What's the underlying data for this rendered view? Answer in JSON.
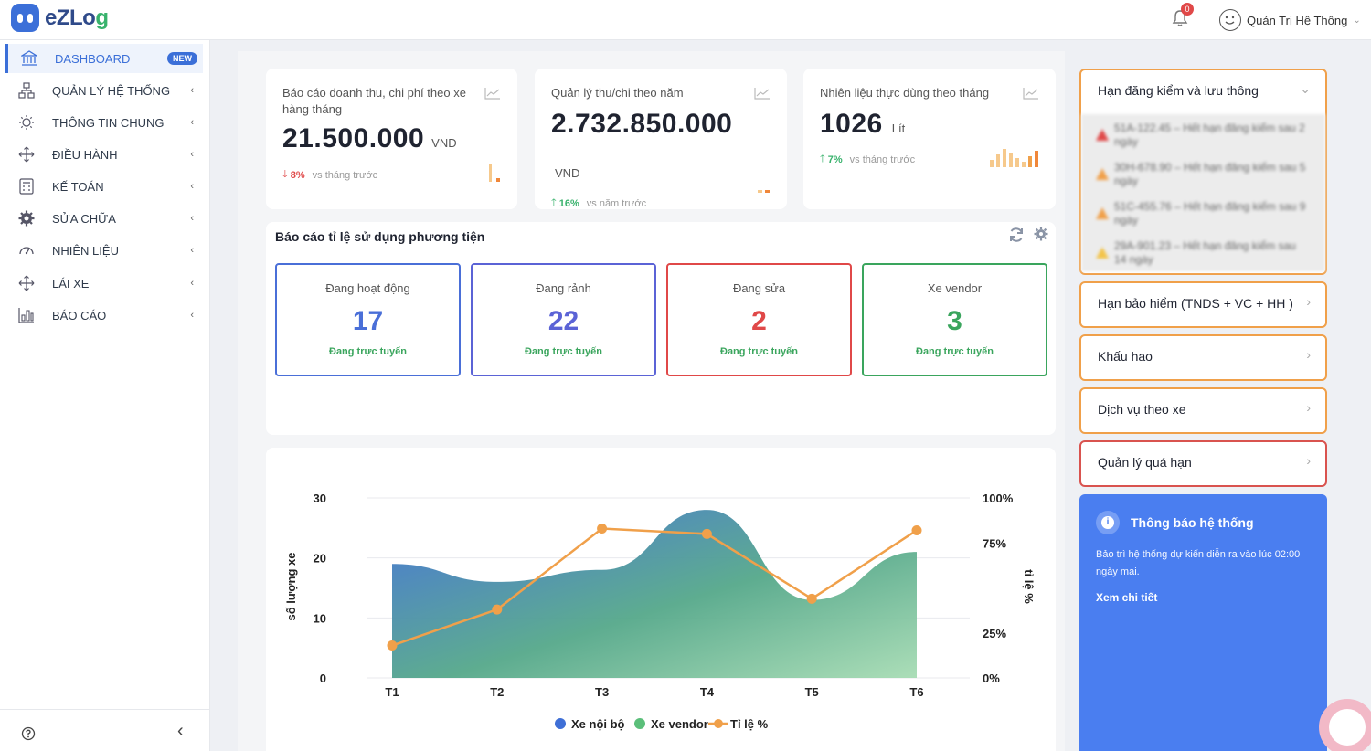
{
  "app": {
    "logo": {
      "part1": "eZ",
      "part2": "Lo",
      "part3": "g"
    }
  },
  "header": {
    "notification_count": "0",
    "user_name": "Quản Trị Hệ Thống"
  },
  "sidebar": {
    "items": [
      {
        "label": "DASHBOARD",
        "badge": "NEW",
        "icon": "bank-icon"
      },
      {
        "label": "QUẢN LÝ HỆ THỐNG",
        "icon": "sitemap-icon"
      },
      {
        "label": "THÔNG TIN CHUNG",
        "icon": "sun-icon"
      },
      {
        "label": "ĐIỀU HÀNH",
        "icon": "arrows-icon"
      },
      {
        "label": "KẾ TOÁN",
        "icon": "calculator-icon"
      },
      {
        "label": "SỬA CHỮA",
        "icon": "cog-icon"
      },
      {
        "label": "NHIÊN LIỆU",
        "icon": "gauge-icon"
      },
      {
        "label": "LÁI XE",
        "icon": "steering-icon"
      },
      {
        "label": "BÁO CÁO",
        "icon": "bar-chart-icon"
      }
    ]
  },
  "kpis": [
    {
      "title": "Báo cáo doanh thu, chi phí theo xe hàng tháng",
      "value": "21.500.000",
      "unit": "VND",
      "direction": "down",
      "pct": "8%",
      "note": "vs tháng trước"
    },
    {
      "title": "Quản lý thu/chi theo năm",
      "value": "2.732.850.000",
      "unit": "VND",
      "direction": "up",
      "pct": "16%",
      "note": "vs năm trước"
    },
    {
      "title": "Nhiên liệu thực dùng theo tháng",
      "value": "1026",
      "unit": "Lít",
      "direction": "up",
      "pct": "7%",
      "note": "vs tháng trước"
    }
  ],
  "ratio": {
    "title": "Báo cáo tỉ lệ sử dụng phương tiện",
    "boxes": [
      {
        "label": "Đang hoạt động",
        "value": "17",
        "sub": "Đang trực tuyến",
        "color": "#4a6fd8",
        "sub_color": "#3aa55d"
      },
      {
        "label": "Đang rảnh",
        "value": "22",
        "sub": "Đang trực tuyến",
        "color": "#5b63d6",
        "sub_color": "#3aa55d"
      },
      {
        "label": "Đang sửa",
        "value": "2",
        "sub": "Đang trực tuyến",
        "color": "#e04848",
        "sub_color": "#3aa55d"
      },
      {
        "label": "Xe vendor",
        "value": "3",
        "sub": "Đang trực tuyến",
        "color": "#3aa55d",
        "sub_color": "#3aa55d"
      }
    ]
  },
  "chart_data": {
    "type": "area",
    "categories": [
      "T1",
      "T2",
      "T3",
      "T4",
      "T5",
      "T6"
    ],
    "ylabel": "số lượng xe",
    "y2label": "tỉ lệ %",
    "ylim": [
      0,
      30
    ],
    "y2lim": [
      0,
      100
    ],
    "yticks": [
      "0",
      "10",
      "20",
      "30"
    ],
    "y2ticks": [
      "0%",
      "25%",
      "75%",
      "100%"
    ],
    "series": [
      {
        "name": "Xe nội bộ",
        "values": [
          19,
          16,
          18,
          28,
          13,
          21
        ],
        "color": "#3f6fd6"
      },
      {
        "name": "Xe vendor",
        "values": [
          19,
          16,
          18,
          28,
          13,
          21
        ],
        "color": "#5bbf7a"
      },
      {
        "name": "Tỉ lệ %",
        "axis": "right",
        "values": [
          18,
          38,
          83,
          80,
          44,
          82
        ],
        "color": "#f0a04a"
      }
    ],
    "legend": "bottom"
  },
  "right_panel": {
    "sections": [
      {
        "label": "Hạn đăng kiểm và lưu thông",
        "expanded": true,
        "color": "#f0a04a"
      },
      {
        "label": "Hạn bảo hiểm (TNDS + VC + HH )",
        "color": "#f0a04a"
      },
      {
        "label": "Khấu hao",
        "color": "#f0a04a"
      },
      {
        "label": "Dịch vụ theo xe",
        "color": "#f0a04a"
      },
      {
        "label": "Quản lý quá hạn",
        "color": "#d9534f"
      }
    ],
    "alerts": [
      {
        "text": "51A-122.45 – Hết hạn đăng kiểm sau 2 ngày",
        "color": "#e04848"
      },
      {
        "text": "30H-678.90 – Hết hạn đăng kiểm sau 5 ngày",
        "color": "#f0a04a"
      },
      {
        "text": "51C-455.76 – Hết hạn đăng kiểm sau 9 ngày",
        "color": "#f0a04a"
      },
      {
        "text": "29A-901.23 – Hết hạn đăng kiểm sau 14 ngày",
        "color": "#f3c44a"
      }
    ]
  },
  "notice": {
    "title": "Thông báo hệ thống",
    "body": "Bảo trì hệ thống dự kiến diễn ra vào lúc 02:00 ngày mai.",
    "link": "Xem chi tiết"
  }
}
